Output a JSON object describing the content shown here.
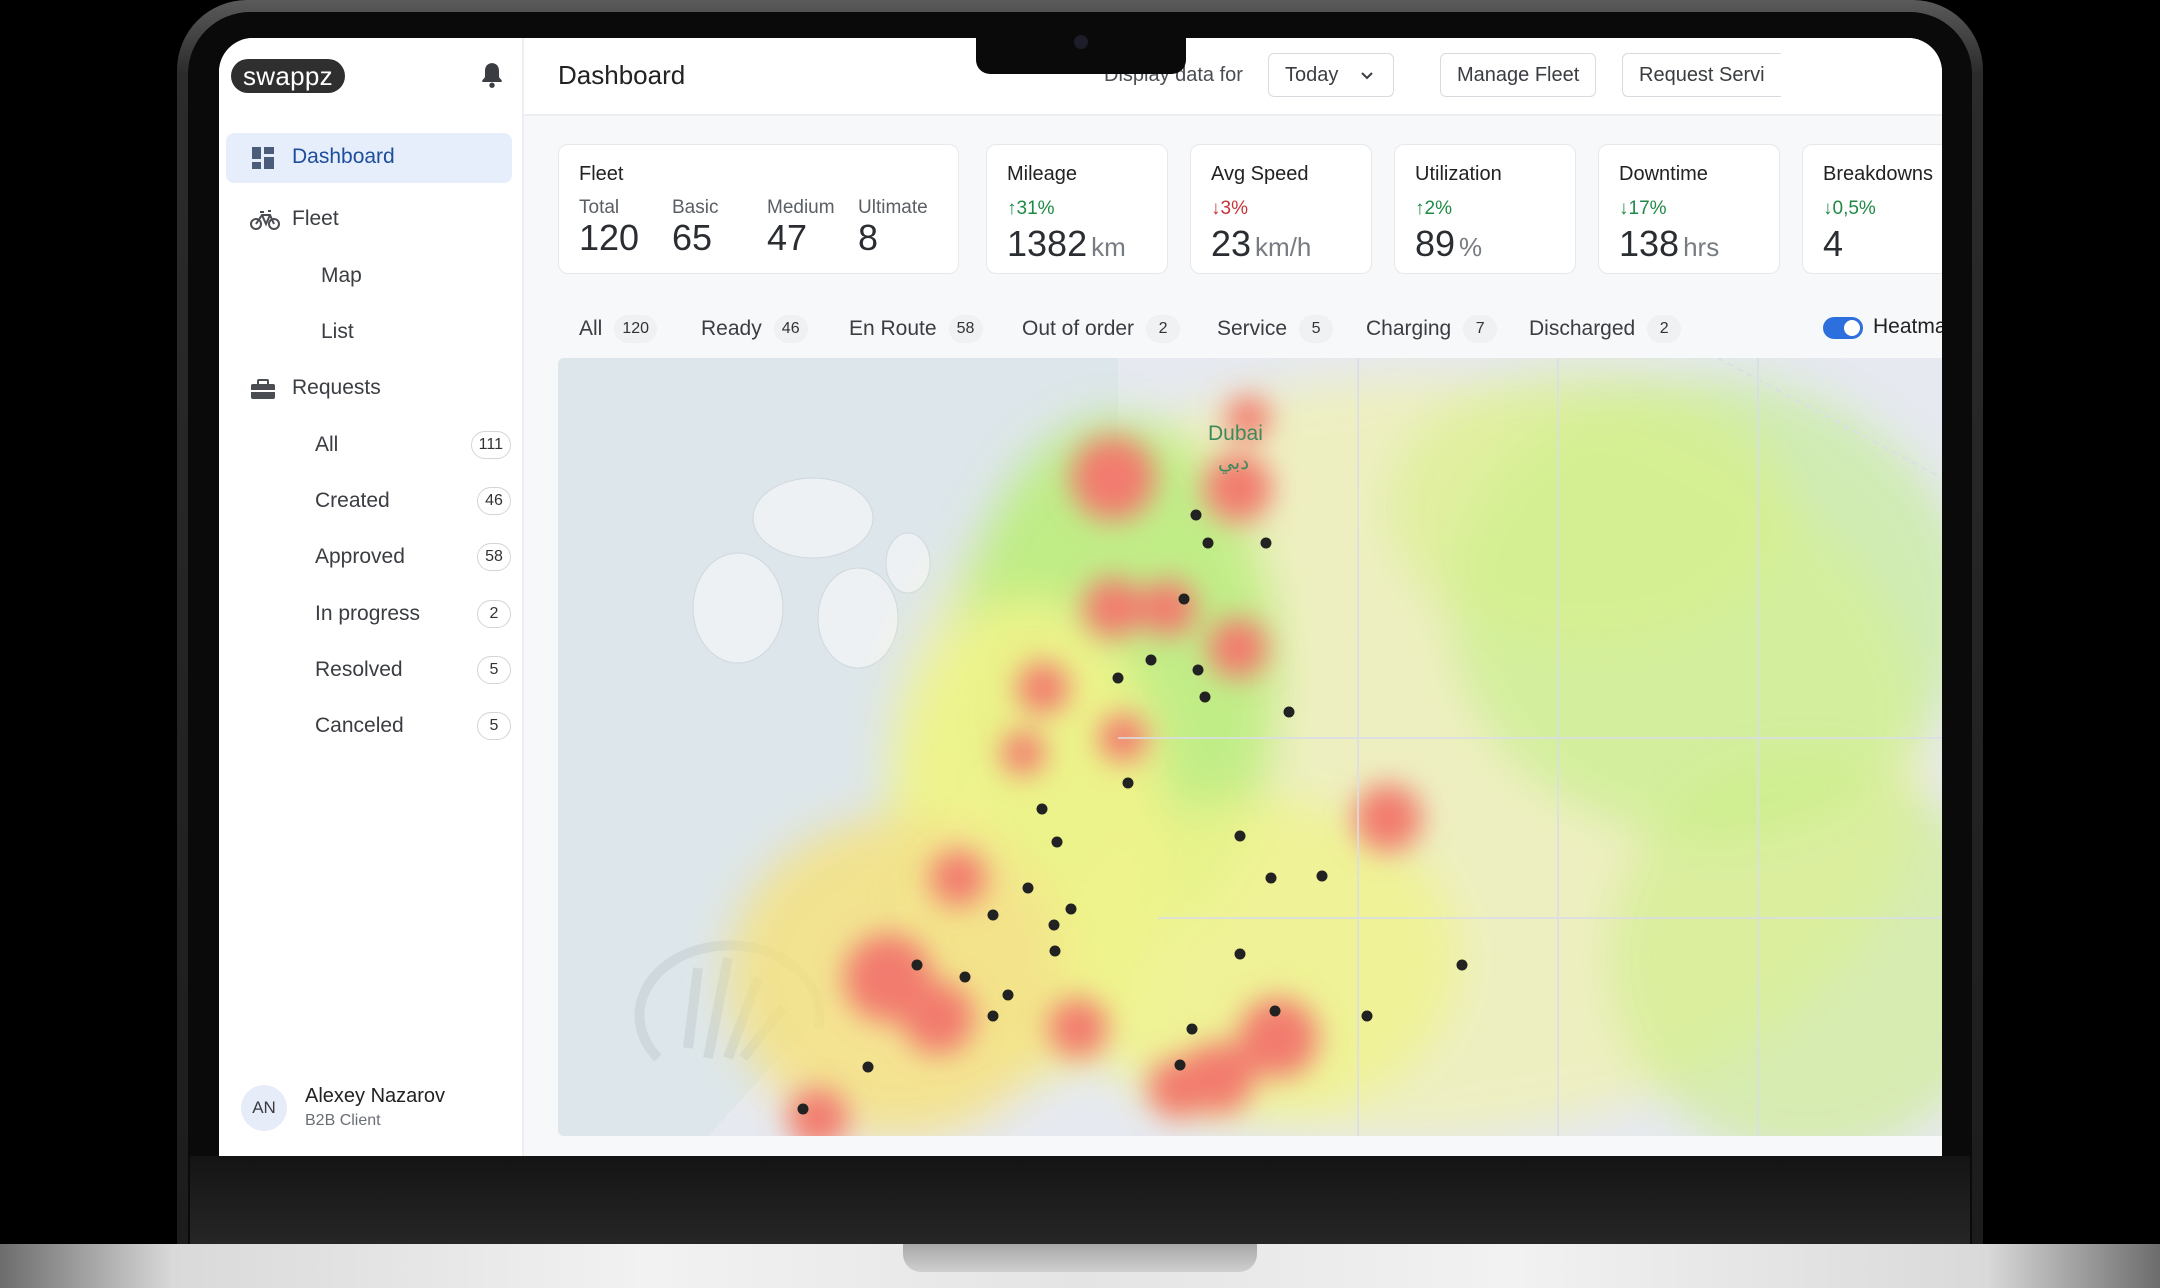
{
  "app": {
    "logo": "swappz",
    "page_title": "Dashboard"
  },
  "sidebar": {
    "nav": [
      {
        "label": "Dashboard",
        "icon": "dashboard-icon",
        "active": true
      },
      {
        "label": "Fleet",
        "icon": "bike-icon"
      },
      {
        "label": "Requests",
        "icon": "briefcase-icon"
      }
    ],
    "fleet_sub": [
      "Map",
      "List"
    ],
    "requests": [
      {
        "label": "All",
        "count": "111"
      },
      {
        "label": "Created",
        "count": "46"
      },
      {
        "label": "Approved",
        "count": "58"
      },
      {
        "label": "In progress",
        "count": "2"
      },
      {
        "label": "Resolved",
        "count": "5"
      },
      {
        "label": "Canceled",
        "count": "5"
      }
    ],
    "user": {
      "initials": "AN",
      "name": "Alexey Nazarov",
      "role": "B2B Client"
    }
  },
  "header": {
    "display_label": "Display data for",
    "period": "Today",
    "manage_fleet": "Manage Fleet",
    "request_service": "Request Servi"
  },
  "stats": {
    "fleet": {
      "title": "Fleet",
      "cols": [
        {
          "k": "Total",
          "v": "120"
        },
        {
          "k": "Basic",
          "v": "65"
        },
        {
          "k": "Medium",
          "v": "47"
        },
        {
          "k": "Ultimate",
          "v": "8"
        }
      ]
    },
    "cards": [
      {
        "title": "Mileage",
        "delta": "↑31%",
        "dir": "up",
        "value": "1382",
        "unit": "km"
      },
      {
        "title": "Avg Speed",
        "delta": "↓3%",
        "dir": "down",
        "value": "23",
        "unit": "km/h"
      },
      {
        "title": "Utilization",
        "delta": "↑2%",
        "dir": "up",
        "value": "89",
        "unit": "%"
      },
      {
        "title": "Downtime",
        "delta": "↓17%",
        "dir": "up",
        "value": "138",
        "unit": "hrs"
      },
      {
        "title": "Breakdowns",
        "delta": "↓0,5%",
        "dir": "up",
        "value": "4",
        "unit": ""
      }
    ]
  },
  "filters": {
    "tabs": [
      {
        "label": "All",
        "count": "120"
      },
      {
        "label": "Ready",
        "count": "46"
      },
      {
        "label": "En Route",
        "count": "58"
      },
      {
        "label": "Out of order",
        "count": "2"
      },
      {
        "label": "Service",
        "count": "5"
      },
      {
        "label": "Charging",
        "count": "7"
      },
      {
        "label": "Discharged",
        "count": "2"
      }
    ],
    "heatmap_label": "Heatma",
    "heatmap_on": true
  },
  "map": {
    "city": "Dubai",
    "city_ar": "دبي",
    "colors": {
      "water": "#dde6ea",
      "land": "#e9ecf1",
      "heat_low": "#f1f57a",
      "heat_mid": "#b6ee6e",
      "heat_high": "#f27b6e",
      "dot": "#222222"
    }
  }
}
